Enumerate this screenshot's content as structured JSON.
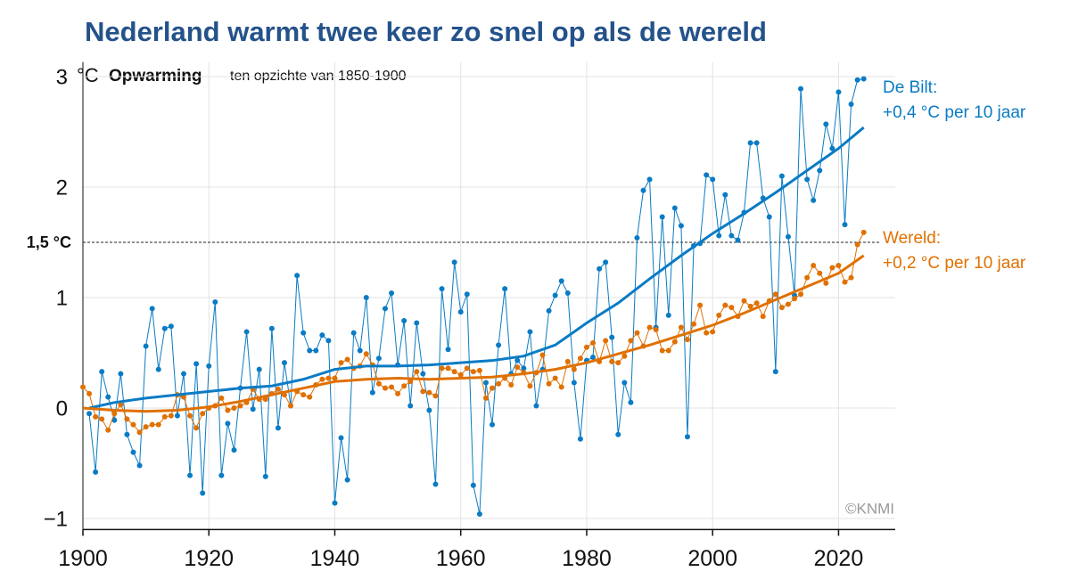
{
  "chart_data": {
    "type": "line",
    "title": "Nederland warmt twee keer zo snel op als de wereld",
    "y_unit": "°C",
    "y_label": "Opwarming",
    "y_sublabel": "ten opzichte van 1850-1900",
    "credit": "©KNMI",
    "xlim": [
      1900,
      2029
    ],
    "xticks": [
      1900,
      1920,
      1940,
      1960,
      1980,
      2000,
      2020
    ],
    "ylim": [
      -1.1,
      3.1
    ],
    "yticks": [
      {
        "value": -1,
        "label": "−1"
      },
      0,
      1,
      2,
      3
    ],
    "grid": true,
    "reference_line": {
      "value": 1.5,
      "label": "1,5 °C"
    },
    "series": [
      {
        "name": "De Bilt:",
        "trend_label": "+0,4 °C per 10 jaar",
        "color": "#0a7bc4",
        "x": [
          1901,
          1902,
          1903,
          1904,
          1905,
          1906,
          1907,
          1908,
          1909,
          1910,
          1911,
          1912,
          1913,
          1914,
          1915,
          1916,
          1917,
          1918,
          1919,
          1920,
          1921,
          1922,
          1923,
          1924,
          1925,
          1926,
          1927,
          1928,
          1929,
          1930,
          1931,
          1932,
          1933,
          1934,
          1935,
          1936,
          1937,
          1938,
          1939,
          1940,
          1941,
          1942,
          1943,
          1944,
          1945,
          1946,
          1947,
          1948,
          1949,
          1950,
          1951,
          1952,
          1953,
          1954,
          1955,
          1956,
          1957,
          1958,
          1959,
          1960,
          1961,
          1962,
          1963,
          1964,
          1965,
          1966,
          1967,
          1968,
          1969,
          1970,
          1971,
          1972,
          1973,
          1974,
          1975,
          1976,
          1977,
          1978,
          1979,
          1980,
          1981,
          1982,
          1983,
          1984,
          1985,
          1986,
          1987,
          1988,
          1989,
          1990,
          1991,
          1992,
          1993,
          1994,
          1995,
          1996,
          1997,
          1998,
          1999,
          2000,
          2001,
          2002,
          2003,
          2004,
          2005,
          2006,
          2007,
          2008,
          2009,
          2010,
          2011,
          2012,
          2013,
          2014,
          2015,
          2016,
          2017,
          2018,
          2019,
          2020,
          2021,
          2022,
          2023,
          2024
        ],
        "values": [
          -0.05,
          -0.58,
          0.33,
          0.1,
          -0.11,
          0.31,
          -0.24,
          -0.4,
          -0.52,
          0.56,
          0.9,
          0.35,
          0.72,
          0.74,
          -0.07,
          0.31,
          -0.61,
          0.4,
          -0.77,
          0.38,
          0.96,
          -0.61,
          -0.14,
          -0.38,
          0.18,
          0.69,
          -0.01,
          0.35,
          -0.62,
          0.72,
          -0.18,
          0.41,
          0.02,
          1.2,
          0.68,
          0.52,
          0.52,
          0.66,
          0.61,
          -0.86,
          -0.27,
          -0.65,
          0.68,
          0.52,
          1.0,
          0.14,
          0.45,
          0.9,
          1.04,
          0.39,
          0.79,
          0.02,
          0.77,
          0.31,
          -0.02,
          -0.69,
          1.08,
          0.53,
          1.32,
          0.87,
          1.03,
          -0.7,
          -0.96,
          0.23,
          -0.15,
          0.57,
          1.08,
          0.31,
          0.43,
          0.36,
          0.69,
          0.02,
          0.35,
          0.88,
          1.02,
          1.15,
          1.04,
          0.23,
          -0.28,
          0.43,
          0.46,
          1.26,
          1.32,
          0.64,
          -0.24,
          0.23,
          0.05,
          1.54,
          1.97,
          2.07,
          0.73,
          1.73,
          0.84,
          1.81,
          1.65,
          -0.26,
          1.47,
          1.49,
          2.11,
          2.07,
          1.56,
          1.93,
          1.56,
          1.52,
          1.77,
          2.4,
          2.4,
          1.9,
          1.73,
          0.33,
          2.1,
          1.55,
          1.02,
          2.89,
          2.07,
          1.88,
          2.15,
          2.57,
          2.35,
          2.86,
          1.66,
          2.75,
          2.97,
          2.98
        ],
        "trend": {
          "x": [
            1901,
            1905,
            1910,
            1915,
            1920,
            1925,
            1930,
            1935,
            1940,
            1945,
            1950,
            1955,
            1960,
            1965,
            1970,
            1975,
            1980,
            1985,
            1990,
            1995,
            2000,
            2005,
            2010,
            2015,
            2020,
            2024
          ],
          "values": [
            0.0,
            0.05,
            0.09,
            0.12,
            0.15,
            0.18,
            0.2,
            0.26,
            0.35,
            0.38,
            0.38,
            0.39,
            0.41,
            0.43,
            0.47,
            0.57,
            0.77,
            0.95,
            1.17,
            1.38,
            1.58,
            1.76,
            1.95,
            2.15,
            2.35,
            2.54
          ]
        }
      },
      {
        "name": "Wereld:",
        "trend_label": "+0,2 °C  per 10 jaar",
        "color": "#e07000",
        "x": [
          1900,
          1901,
          1902,
          1903,
          1904,
          1905,
          1906,
          1907,
          1908,
          1909,
          1910,
          1911,
          1912,
          1913,
          1914,
          1915,
          1916,
          1917,
          1918,
          1919,
          1920,
          1921,
          1922,
          1923,
          1924,
          1925,
          1926,
          1927,
          1928,
          1929,
          1930,
          1931,
          1932,
          1933,
          1934,
          1935,
          1936,
          1937,
          1938,
          1939,
          1940,
          1941,
          1942,
          1943,
          1944,
          1945,
          1946,
          1947,
          1948,
          1949,
          1950,
          1951,
          1952,
          1953,
          1954,
          1955,
          1956,
          1957,
          1958,
          1959,
          1960,
          1961,
          1962,
          1963,
          1964,
          1965,
          1966,
          1967,
          1968,
          1969,
          1970,
          1971,
          1972,
          1973,
          1974,
          1975,
          1976,
          1977,
          1978,
          1979,
          1980,
          1981,
          1982,
          1983,
          1984,
          1985,
          1986,
          1987,
          1988,
          1989,
          1990,
          1991,
          1992,
          1993,
          1994,
          1995,
          1996,
          1997,
          1998,
          1999,
          2000,
          2001,
          2002,
          2003,
          2004,
          2005,
          2006,
          2007,
          2008,
          2009,
          2010,
          2011,
          2012,
          2013,
          2014,
          2015,
          2016,
          2017,
          2018,
          2019,
          2020,
          2021,
          2022,
          2023,
          2024
        ],
        "values": [
          0.19,
          0.13,
          -0.08,
          -0.1,
          -0.2,
          -0.05,
          0.03,
          -0.1,
          -0.15,
          -0.22,
          -0.17,
          -0.15,
          -0.15,
          -0.08,
          -0.07,
          0.12,
          0.1,
          -0.07,
          -0.18,
          -0.05,
          0.0,
          0.02,
          0.09,
          -0.02,
          0.0,
          0.02,
          0.05,
          0.17,
          0.08,
          0.08,
          0.13,
          0.17,
          0.12,
          0.02,
          0.15,
          0.12,
          0.1,
          0.21,
          0.26,
          0.27,
          0.27,
          0.41,
          0.44,
          0.36,
          0.38,
          0.49,
          0.39,
          0.22,
          0.18,
          0.19,
          0.13,
          0.2,
          0.24,
          0.33,
          0.15,
          0.14,
          0.11,
          0.36,
          0.36,
          0.33,
          0.3,
          0.36,
          0.33,
          0.34,
          0.09,
          0.18,
          0.22,
          0.27,
          0.21,
          0.37,
          0.32,
          0.2,
          0.32,
          0.48,
          0.22,
          0.27,
          0.19,
          0.42,
          0.35,
          0.45,
          0.55,
          0.59,
          0.42,
          0.61,
          0.42,
          0.41,
          0.47,
          0.61,
          0.68,
          0.56,
          0.73,
          0.71,
          0.52,
          0.52,
          0.6,
          0.73,
          0.62,
          0.76,
          0.93,
          0.68,
          0.69,
          0.84,
          0.93,
          0.91,
          0.83,
          0.97,
          0.92,
          0.95,
          0.83,
          0.97,
          1.03,
          0.91,
          0.94,
          0.99,
          1.03,
          1.18,
          1.29,
          1.22,
          1.13,
          1.27,
          1.29,
          1.14,
          1.18,
          1.48,
          1.59
        ],
        "trend": {
          "x": [
            1900,
            1905,
            1910,
            1915,
            1920,
            1925,
            1930,
            1935,
            1940,
            1945,
            1950,
            1955,
            1960,
            1965,
            1970,
            1975,
            1980,
            1985,
            1990,
            1995,
            2000,
            2005,
            2010,
            2015,
            2020,
            2024
          ],
          "values": [
            0.0,
            -0.02,
            -0.03,
            -0.02,
            0.01,
            0.06,
            0.12,
            0.18,
            0.24,
            0.26,
            0.27,
            0.26,
            0.27,
            0.28,
            0.31,
            0.35,
            0.41,
            0.49,
            0.57,
            0.66,
            0.75,
            0.86,
            0.98,
            1.1,
            1.22,
            1.38
          ]
        }
      }
    ]
  }
}
